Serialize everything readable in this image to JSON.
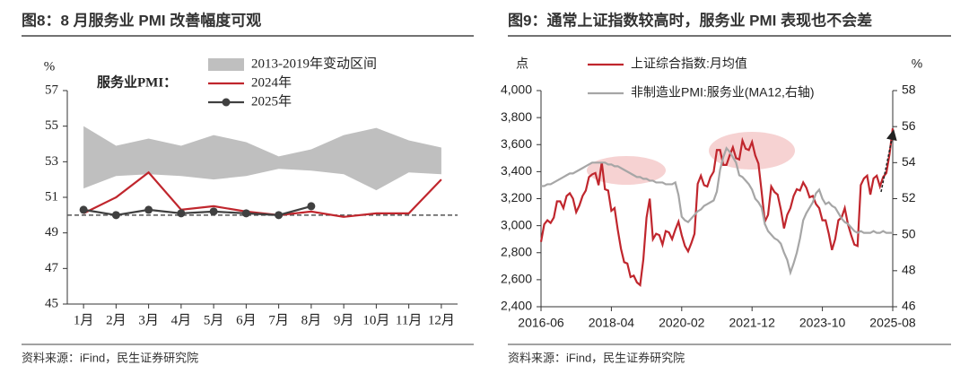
{
  "chart_data": [
    {
      "type": "line",
      "title": "图8：8 月服务业 PMI 改善幅度可观",
      "y_label": "%",
      "legend_title": "服务业PMI：",
      "source": "资料来源：iFind，民生证券研究院",
      "categories": [
        "1月",
        "2月",
        "3月",
        "4月",
        "5月",
        "6月",
        "7月",
        "8月",
        "9月",
        "10月",
        "11月",
        "12月"
      ],
      "ylim": [
        45,
        57
      ],
      "yticks": [
        45,
        47,
        49,
        51,
        53,
        55,
        57
      ],
      "hline": 50,
      "series": [
        {
          "name": "2013-2019年变动区间",
          "type": "band",
          "color": "#bfbfbf",
          "max": [
            55.0,
            53.9,
            54.3,
            53.9,
            54.5,
            54.1,
            53.3,
            53.7,
            54.5,
            54.9,
            54.2,
            53.8
          ],
          "min": [
            51.5,
            52.2,
            52.3,
            52.2,
            52.0,
            52.2,
            52.6,
            52.5,
            52.3,
            51.4,
            52.4,
            52.3
          ]
        },
        {
          "name": "2024年",
          "color": "#c0262d",
          "values": [
            50.1,
            51.0,
            52.4,
            50.3,
            50.5,
            50.2,
            50.0,
            50.2,
            49.9,
            50.1,
            50.1,
            52.0
          ]
        },
        {
          "name": "2025年",
          "color": "#404040",
          "marker": true,
          "values": [
            50.3,
            50.0,
            50.3,
            50.1,
            50.2,
            50.1,
            50.0,
            50.5,
            null,
            null,
            null,
            null
          ]
        }
      ]
    },
    {
      "type": "line",
      "title": "图9：通常上证指数较高时，服务业 PMI 表现也不会差",
      "y_label": "点",
      "y2_label": "%",
      "source": "资料来源：iFind，民生证券研究院",
      "categories": [
        "2016-06",
        null,
        null,
        null,
        null,
        null,
        null,
        null,
        null,
        null,
        null,
        null,
        null,
        null,
        null,
        null,
        null,
        null,
        null,
        null,
        null,
        null,
        "2018-04",
        null,
        null,
        null,
        null,
        null,
        null,
        null,
        null,
        null,
        null,
        null,
        null,
        null,
        null,
        null,
        null,
        null,
        null,
        null,
        null,
        null,
        "2020-02",
        null,
        null,
        null,
        null,
        null,
        null,
        null,
        null,
        null,
        null,
        null,
        null,
        null,
        null,
        null,
        null,
        null,
        null,
        null,
        null,
        null,
        "2021-12",
        null,
        null,
        null,
        null,
        null,
        null,
        null,
        null,
        null,
        null,
        null,
        null,
        null,
        null,
        null,
        null,
        null,
        null,
        null,
        null,
        null,
        "2023-10",
        null,
        null,
        null,
        null,
        null,
        null,
        null,
        null,
        null,
        null,
        null,
        null,
        null,
        null,
        null,
        null,
        null,
        null,
        null,
        null,
        null,
        "2025-08"
      ],
      "ylim": [
        2400,
        4000
      ],
      "yticks": [
        {
          "value": 2400,
          "label": "2,400"
        },
        {
          "value": 2600,
          "label": "2,600"
        },
        {
          "value": 2800,
          "label": "2,800"
        },
        {
          "value": 3000,
          "label": "3,000"
        },
        {
          "value": 3200,
          "label": "3,200"
        },
        {
          "value": 3400,
          "label": "3,400"
        },
        {
          "value": 3600,
          "label": "3,600"
        },
        {
          "value": 3800,
          "label": "3,800"
        },
        {
          "value": 4000,
          "label": "4,000"
        }
      ],
      "y2lim": [
        46,
        58
      ],
      "y2ticks": [
        46,
        48,
        50,
        52,
        54,
        56,
        58
      ],
      "series": [
        {
          "name": "上证综合指数:月均值",
          "color": "#c0262d",
          "values": [
            2880,
            3010,
            3040,
            3020,
            3060,
            3180,
            3180,
            3130,
            3220,
            3240,
            3200,
            3100,
            3150,
            3220,
            3260,
            3360,
            3380,
            3390,
            3300,
            3470,
            3270,
            3260,
            3110,
            3130,
            2970,
            2830,
            2730,
            2720,
            2620,
            2630,
            2580,
            2560,
            2750,
            3060,
            3200,
            2900,
            2940,
            2930,
            2860,
            2960,
            2950,
            2900,
            2970,
            3030,
            2930,
            2850,
            2810,
            2870,
            2940,
            3310,
            3370,
            3300,
            3290,
            3360,
            3400,
            3560,
            3560,
            3450,
            3450,
            3520,
            3580,
            3500,
            3490,
            3630,
            3570,
            3560,
            3620,
            3520,
            3460,
            3250,
            3030,
            3080,
            3290,
            3250,
            3230,
            3120,
            2980,
            3080,
            3130,
            3220,
            3270,
            3260,
            3320,
            3280,
            3210,
            3220,
            3160,
            3130,
            3040,
            3040,
            2940,
            2820,
            2900,
            3040,
            3060,
            3130,
            3010,
            2930,
            2860,
            2850,
            3300,
            3350,
            3370,
            3230,
            3350,
            3370,
            3290,
            3360,
            3390,
            3530,
            3720
          ]
        },
        {
          "name": "非制造业PMI:服务业(MA12,右轴)",
          "color": "#a6a6a6",
          "axis": "y2",
          "values": [
            52.7,
            52.7,
            52.8,
            52.8,
            52.9,
            53.0,
            53.1,
            53.2,
            53.3,
            53.4,
            53.4,
            53.5,
            53.6,
            53.7,
            53.8,
            53.9,
            54.0,
            54.0,
            54.0,
            54.0,
            54.0,
            53.9,
            53.9,
            53.8,
            53.8,
            53.7,
            53.6,
            53.5,
            53.4,
            53.3,
            53.2,
            53.2,
            53.1,
            53.1,
            53.0,
            53.0,
            52.9,
            52.9,
            52.9,
            52.8,
            52.8,
            52.8,
            52.9,
            52.2,
            51.0,
            50.8,
            50.7,
            50.9,
            51.1,
            51.3,
            51.4,
            51.6,
            51.7,
            51.8,
            51.9,
            52.4,
            53.6,
            54.3,
            54.8,
            54.6,
            54.3,
            54.0,
            53.3,
            53.2,
            53.0,
            52.8,
            52.5,
            52.0,
            51.8,
            51.5,
            50.6,
            50.2,
            50.0,
            49.8,
            49.7,
            49.5,
            49.0,
            48.6,
            47.9,
            48.4,
            49.0,
            49.8,
            50.8,
            51.2,
            51.5,
            51.8,
            52.3,
            52.5,
            52.0,
            51.7,
            51.8,
            51.6,
            51.5,
            51.2,
            50.9,
            50.7,
            50.6,
            50.4,
            50.2,
            50.1,
            50.2,
            50.1,
            50.1,
            50.1,
            50.2,
            50.1,
            50.1,
            50.2,
            50.1,
            50.1,
            50.1
          ]
        }
      ]
    }
  ]
}
